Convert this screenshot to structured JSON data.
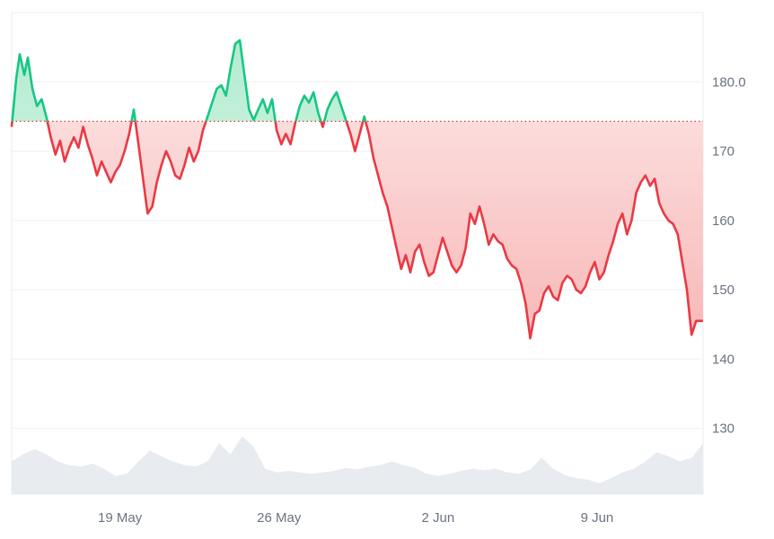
{
  "chart_data": {
    "type": "line",
    "title": "",
    "xlabel": "",
    "ylabel": "",
    "x_ticks": [
      "19 May",
      "26 May",
      "2 Jun",
      "9 Jun"
    ],
    "y_ticks": [
      130,
      140,
      150,
      160,
      170,
      180
    ],
    "y_tick_labels": [
      "130",
      "140",
      "150",
      "160",
      "170",
      "180.0"
    ],
    "ylim": [
      120.5,
      190
    ],
    "x_range_days": [
      0,
      30
    ],
    "baseline": 174.3,
    "grid": "horizontal",
    "legend": "none",
    "colors": {
      "above": "#16c784",
      "below": "#ea3943",
      "above_fill": "#c8f2dc",
      "below_fill": "#fde0e0",
      "volume_fill": "#e8ebef",
      "grid": "#eef0f3",
      "baseline": "#e04848"
    },
    "series": [
      {
        "values": [
          [
            0.0,
            173.5
          ],
          [
            0.2,
            180.5
          ],
          [
            0.35,
            184.0
          ],
          [
            0.55,
            181.0
          ],
          [
            0.7,
            183.5
          ],
          [
            0.9,
            179.0
          ],
          [
            1.1,
            176.5
          ],
          [
            1.3,
            177.5
          ],
          [
            1.5,
            175.0
          ],
          [
            1.7,
            172.0
          ],
          [
            1.9,
            169.5
          ],
          [
            2.1,
            171.5
          ],
          [
            2.3,
            168.5
          ],
          [
            2.5,
            170.5
          ],
          [
            2.7,
            172.0
          ],
          [
            2.9,
            170.5
          ],
          [
            3.1,
            173.5
          ],
          [
            3.3,
            171.0
          ],
          [
            3.5,
            169.0
          ],
          [
            3.7,
            166.5
          ],
          [
            3.9,
            168.5
          ],
          [
            4.1,
            167.0
          ],
          [
            4.3,
            165.5
          ],
          [
            4.5,
            167.0
          ],
          [
            4.7,
            168.0
          ],
          [
            4.9,
            170.0
          ],
          [
            5.1,
            172.5
          ],
          [
            5.3,
            176.0
          ],
          [
            5.5,
            171.0
          ],
          [
            5.7,
            166.0
          ],
          [
            5.9,
            161.0
          ],
          [
            6.1,
            162.0
          ],
          [
            6.3,
            165.5
          ],
          [
            6.5,
            168.0
          ],
          [
            6.7,
            170.0
          ],
          [
            6.9,
            168.5
          ],
          [
            7.1,
            166.5
          ],
          [
            7.3,
            166.0
          ],
          [
            7.5,
            168.0
          ],
          [
            7.7,
            170.5
          ],
          [
            7.9,
            168.5
          ],
          [
            8.1,
            170.0
          ],
          [
            8.3,
            173.0
          ],
          [
            8.5,
            175.0
          ],
          [
            8.7,
            177.0
          ],
          [
            8.9,
            179.0
          ],
          [
            9.1,
            179.5
          ],
          [
            9.3,
            178.0
          ],
          [
            9.5,
            182.0
          ],
          [
            9.7,
            185.5
          ],
          [
            9.9,
            186.0
          ],
          [
            10.1,
            181.0
          ],
          [
            10.3,
            176.0
          ],
          [
            10.5,
            174.5
          ],
          [
            10.7,
            176.0
          ],
          [
            10.9,
            177.5
          ],
          [
            11.1,
            175.5
          ],
          [
            11.3,
            177.5
          ],
          [
            11.5,
            173.0
          ],
          [
            11.7,
            171.0
          ],
          [
            11.9,
            172.5
          ],
          [
            12.1,
            171.0
          ],
          [
            12.3,
            174.0
          ],
          [
            12.5,
            176.5
          ],
          [
            12.7,
            178.0
          ],
          [
            12.9,
            177.0
          ],
          [
            13.1,
            178.5
          ],
          [
            13.3,
            175.5
          ],
          [
            13.5,
            173.5
          ],
          [
            13.7,
            176.0
          ],
          [
            13.9,
            177.5
          ],
          [
            14.1,
            178.5
          ],
          [
            14.3,
            176.5
          ],
          [
            14.5,
            174.5
          ],
          [
            14.7,
            172.5
          ],
          [
            14.9,
            170.0
          ],
          [
            15.1,
            172.5
          ],
          [
            15.3,
            175.0
          ],
          [
            15.5,
            172.5
          ],
          [
            15.7,
            169.0
          ],
          [
            15.9,
            166.5
          ],
          [
            16.1,
            164.0
          ],
          [
            16.3,
            162.0
          ],
          [
            16.5,
            159.0
          ],
          [
            16.7,
            156.0
          ],
          [
            16.9,
            153.0
          ],
          [
            17.1,
            155.0
          ],
          [
            17.3,
            152.5
          ],
          [
            17.5,
            155.5
          ],
          [
            17.7,
            156.5
          ],
          [
            17.9,
            154.0
          ],
          [
            18.1,
            152.0
          ],
          [
            18.3,
            152.5
          ],
          [
            18.5,
            155.0
          ],
          [
            18.7,
            157.5
          ],
          [
            18.9,
            155.5
          ],
          [
            19.1,
            153.5
          ],
          [
            19.3,
            152.5
          ],
          [
            19.5,
            153.5
          ],
          [
            19.7,
            156.0
          ],
          [
            19.9,
            161.0
          ],
          [
            20.1,
            159.5
          ],
          [
            20.3,
            162.0
          ],
          [
            20.5,
            159.5
          ],
          [
            20.7,
            156.5
          ],
          [
            20.9,
            158.0
          ],
          [
            21.1,
            157.0
          ],
          [
            21.3,
            156.5
          ],
          [
            21.5,
            154.5
          ],
          [
            21.7,
            153.5
          ],
          [
            21.9,
            153.0
          ],
          [
            22.1,
            151.0
          ],
          [
            22.3,
            148.0
          ],
          [
            22.5,
            143.0
          ],
          [
            22.7,
            146.5
          ],
          [
            22.9,
            147.0
          ],
          [
            23.1,
            149.5
          ],
          [
            23.3,
            150.5
          ],
          [
            23.5,
            149.0
          ],
          [
            23.7,
            148.5
          ],
          [
            23.9,
            151.0
          ],
          [
            24.1,
            152.0
          ],
          [
            24.3,
            151.5
          ],
          [
            24.5,
            150.0
          ],
          [
            24.7,
            149.5
          ],
          [
            24.9,
            150.5
          ],
          [
            25.1,
            152.5
          ],
          [
            25.3,
            154.0
          ],
          [
            25.5,
            151.5
          ],
          [
            25.7,
            152.5
          ],
          [
            25.9,
            155.0
          ],
          [
            26.1,
            157.0
          ],
          [
            26.3,
            159.5
          ],
          [
            26.5,
            161.0
          ],
          [
            26.7,
            158.0
          ],
          [
            26.9,
            160.0
          ],
          [
            27.1,
            164.0
          ],
          [
            27.3,
            165.5
          ],
          [
            27.5,
            166.5
          ],
          [
            27.7,
            165.0
          ],
          [
            27.9,
            166.0
          ],
          [
            28.1,
            162.5
          ],
          [
            28.3,
            161.0
          ],
          [
            28.5,
            160.0
          ],
          [
            28.7,
            159.5
          ],
          [
            28.9,
            158.0
          ],
          [
            29.1,
            154.0
          ],
          [
            29.3,
            150.0
          ],
          [
            29.5,
            143.5
          ],
          [
            29.7,
            145.5
          ],
          [
            30.0,
            145.5
          ]
        ]
      }
    ],
    "volume": [
      [
        0.0,
        0.45
      ],
      [
        0.5,
        0.55
      ],
      [
        1.0,
        0.62
      ],
      [
        1.5,
        0.55
      ],
      [
        2.0,
        0.45
      ],
      [
        2.5,
        0.4
      ],
      [
        3.0,
        0.38
      ],
      [
        3.5,
        0.42
      ],
      [
        4.0,
        0.35
      ],
      [
        4.5,
        0.25
      ],
      [
        5.0,
        0.28
      ],
      [
        5.5,
        0.45
      ],
      [
        6.0,
        0.6
      ],
      [
        6.5,
        0.52
      ],
      [
        7.0,
        0.45
      ],
      [
        7.5,
        0.4
      ],
      [
        8.0,
        0.38
      ],
      [
        8.5,
        0.45
      ],
      [
        9.0,
        0.7
      ],
      [
        9.5,
        0.55
      ],
      [
        10.0,
        0.8
      ],
      [
        10.5,
        0.65
      ],
      [
        11.0,
        0.35
      ],
      [
        11.5,
        0.3
      ],
      [
        12.0,
        0.32
      ],
      [
        12.5,
        0.3
      ],
      [
        13.0,
        0.28
      ],
      [
        13.5,
        0.3
      ],
      [
        14.0,
        0.32
      ],
      [
        14.5,
        0.36
      ],
      [
        15.0,
        0.34
      ],
      [
        15.5,
        0.38
      ],
      [
        16.0,
        0.4
      ],
      [
        16.5,
        0.45
      ],
      [
        17.0,
        0.4
      ],
      [
        17.5,
        0.36
      ],
      [
        18.0,
        0.28
      ],
      [
        18.5,
        0.25
      ],
      [
        19.0,
        0.28
      ],
      [
        19.5,
        0.32
      ],
      [
        20.0,
        0.35
      ],
      [
        20.5,
        0.33
      ],
      [
        21.0,
        0.35
      ],
      [
        21.5,
        0.3
      ],
      [
        22.0,
        0.28
      ],
      [
        22.5,
        0.34
      ],
      [
        23.0,
        0.5
      ],
      [
        23.5,
        0.35
      ],
      [
        24.0,
        0.26
      ],
      [
        24.5,
        0.22
      ],
      [
        25.0,
        0.2
      ],
      [
        25.5,
        0.15
      ],
      [
        26.0,
        0.22
      ],
      [
        26.5,
        0.3
      ],
      [
        27.0,
        0.35
      ],
      [
        27.5,
        0.45
      ],
      [
        28.0,
        0.58
      ],
      [
        28.5,
        0.52
      ],
      [
        29.0,
        0.45
      ],
      [
        29.5,
        0.5
      ],
      [
        30.0,
        0.7
      ]
    ]
  }
}
